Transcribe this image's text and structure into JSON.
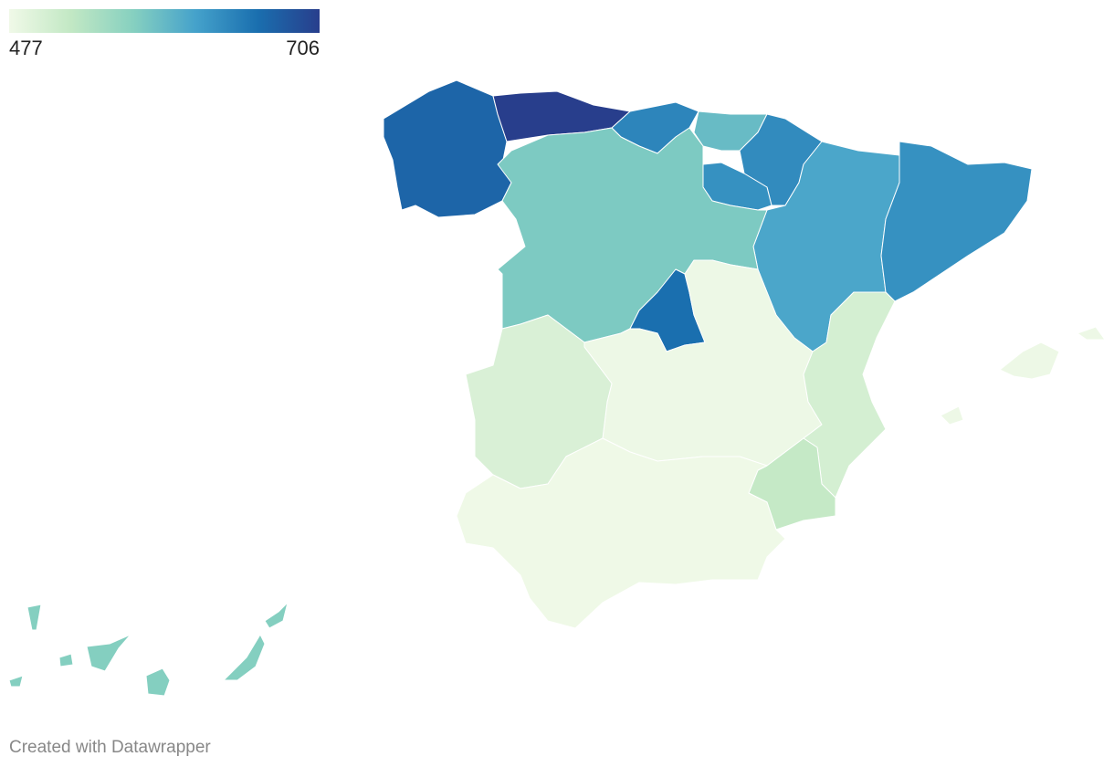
{
  "chart_data": {
    "type": "choropleth",
    "colorlim": [
      477,
      706
    ],
    "colors": [
      "#f0f9e8",
      "#c2e8c4",
      "#86d0c0",
      "#45a2cb",
      "#1a6faf",
      "#283e8c"
    ],
    "values": [
      670,
      706,
      640,
      590,
      635,
      630,
      610,
      630,
      575,
      660,
      480,
      500,
      505,
      520,
      478,
      480,
      570
    ],
    "credit": "Created with Datawrapper"
  }
}
